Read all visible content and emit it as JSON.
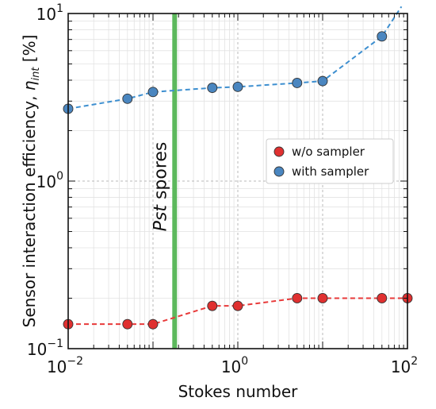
{
  "chart_data": {
    "type": "scatter",
    "xlabel": "Stokes number",
    "ylabel": {
      "main": "Sensor interaction efficiency, ",
      "symbol": "η",
      "subscript": "int",
      "unit": " [%]"
    },
    "xscale": "log",
    "yscale": "log",
    "xlim": [
      0.01,
      100
    ],
    "ylim": [
      0.1,
      10
    ],
    "x_ticks": [
      {
        "value": 0.01,
        "base": "10",
        "exp": "−2"
      },
      {
        "value": 1,
        "base": "10",
        "exp": "0"
      },
      {
        "value": 100,
        "base": "10",
        "exp": "2"
      }
    ],
    "y_ticks": [
      {
        "value": 0.1,
        "base": "10",
        "exp": "−1"
      },
      {
        "value": 1,
        "base": "10",
        "exp": "0"
      },
      {
        "value": 10,
        "base": "10",
        "exp": "1"
      }
    ],
    "grid": true,
    "legend_position": "right, mid-height",
    "series": [
      {
        "name": "w/o sampler",
        "color": "#e03030",
        "line_color": "#e83a3a",
        "points": [
          {
            "x": 0.01,
            "y": 0.14
          },
          {
            "x": 0.05,
            "y": 0.14
          },
          {
            "x": 0.1,
            "y": 0.14
          },
          {
            "x": 0.5,
            "y": 0.18
          },
          {
            "x": 1,
            "y": 0.18
          },
          {
            "x": 5,
            "y": 0.2
          },
          {
            "x": 10,
            "y": 0.2
          },
          {
            "x": 50,
            "y": 0.2
          },
          {
            "x": 100,
            "y": 0.2
          }
        ]
      },
      {
        "name": "with sampler",
        "color": "#4a86c0",
        "line_color": "#3d8fd0",
        "points": [
          {
            "x": 0.01,
            "y": 2.7
          },
          {
            "x": 0.05,
            "y": 3.1
          },
          {
            "x": 0.1,
            "y": 3.4
          },
          {
            "x": 0.5,
            "y": 3.6
          },
          {
            "x": 1,
            "y": 3.65
          },
          {
            "x": 5,
            "y": 3.85
          },
          {
            "x": 10,
            "y": 3.95
          },
          {
            "x": 50,
            "y": 7.3
          }
        ],
        "trend_end": {
          "x": 85,
          "y": 11
        }
      }
    ],
    "annotation": {
      "text_italic": "Pst",
      "text": " spores",
      "x": 0.18,
      "color": "#5cb85c"
    }
  }
}
